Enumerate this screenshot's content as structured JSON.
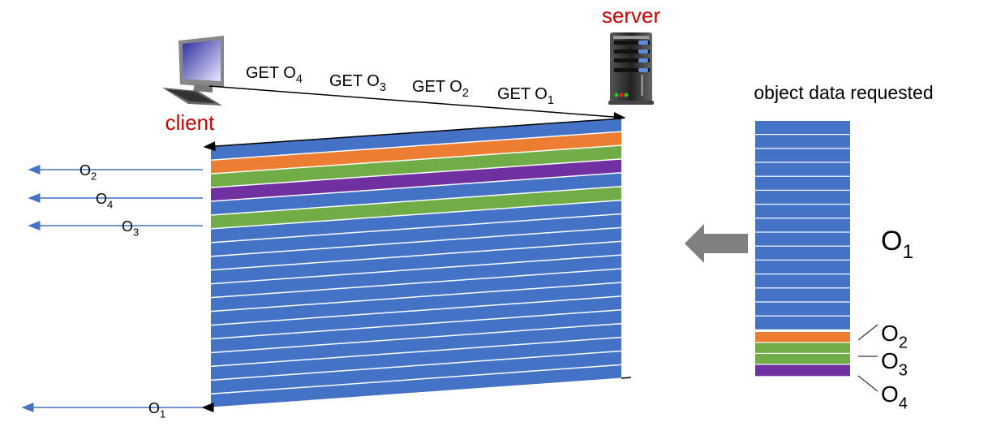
{
  "labels": {
    "server": "server",
    "client": "client",
    "object_data_requested": "object data requested"
  },
  "requests": [
    {
      "text": "GET O",
      "sub": "4"
    },
    {
      "text": "GET O",
      "sub": "3"
    },
    {
      "text": "GET O",
      "sub": "2"
    },
    {
      "text": "GET O",
      "sub": "1"
    }
  ],
  "arrivals": [
    {
      "text": "O",
      "sub": "2"
    },
    {
      "text": "O",
      "sub": "4"
    },
    {
      "text": "O",
      "sub": "3"
    },
    {
      "text": "O",
      "sub": "1"
    }
  ],
  "stack_labels": [
    {
      "text": "O",
      "sub": "1"
    },
    {
      "text": "O",
      "sub": "2"
    },
    {
      "text": "O",
      "sub": "3"
    },
    {
      "text": "O",
      "sub": "4"
    }
  ],
  "colors": {
    "O1": "#4472c4",
    "O2": "#ed7d31",
    "O3": "#70ad47",
    "O4": "#7030a0",
    "label_red": "#c00000",
    "arrow_blue": "#4472c4",
    "big_arrow": "#808080"
  },
  "transmitted_sequence": [
    "O1",
    "O2",
    "O3",
    "O4",
    "O1",
    "O3",
    "O1",
    "O1",
    "O1",
    "O1",
    "O1",
    "O1",
    "O1",
    "O1",
    "O1",
    "O1",
    "O1",
    "O1",
    "O1"
  ],
  "requested_stack": [
    "O1",
    "O1",
    "O1",
    "O1",
    "O1",
    "O1",
    "O1",
    "O1",
    "O1",
    "O1",
    "O1",
    "O1",
    "O1",
    "O1",
    "O1",
    "O2",
    "O3",
    "O3",
    "O4"
  ],
  "icons": [
    "client-computer-icon",
    "server-icon",
    "gray-left-arrow-icon"
  ]
}
